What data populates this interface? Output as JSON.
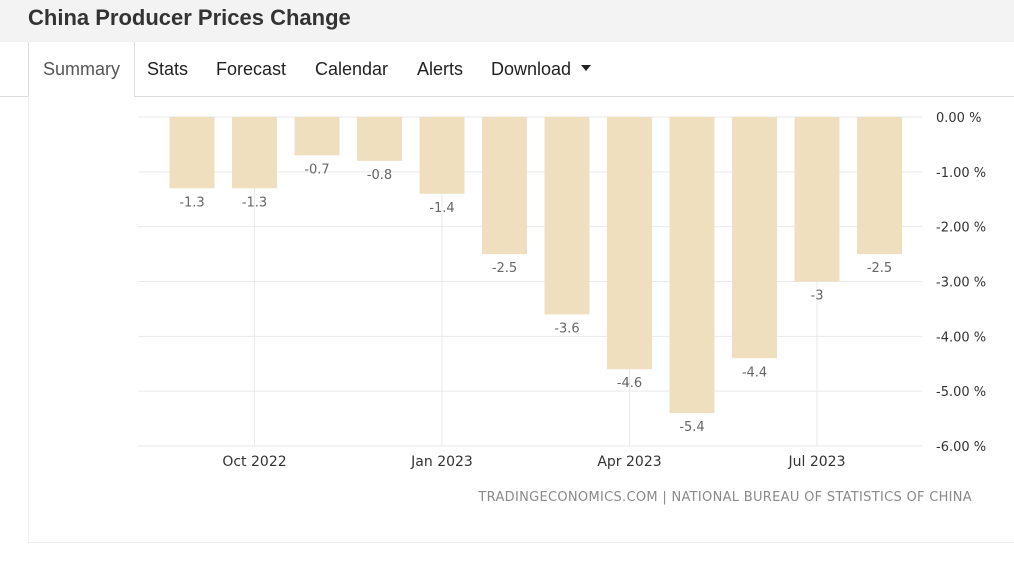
{
  "header": {
    "title": "China Producer Prices Change"
  },
  "tabs": [
    {
      "label": "Summary",
      "active": true
    },
    {
      "label": "Stats"
    },
    {
      "label": "Forecast"
    },
    {
      "label": "Calendar"
    },
    {
      "label": "Alerts"
    },
    {
      "label": "Download",
      "has_dropdown": true
    }
  ],
  "source_text": "TRADINGECONOMICS.COM | NATIONAL BUREAU OF STATISTICS OF CHINA",
  "colors": {
    "bar": "#f0dfbf",
    "grid": "#e9e9e9",
    "label": "#666666",
    "axis_text": "#333333"
  },
  "chart_data": {
    "type": "bar",
    "categories": [
      "Sep 2022",
      "Oct 2022",
      "Nov 2022",
      "Dec 2022",
      "Jan 2023",
      "Feb 2023",
      "Mar 2023",
      "Apr 2023",
      "May 2023",
      "Jun 2023",
      "Jul 2023",
      "Aug 2023"
    ],
    "values": [
      -1.3,
      -1.3,
      -0.7,
      -0.8,
      -1.4,
      -2.5,
      -3.6,
      -4.6,
      -5.4,
      -4.4,
      -3,
      -2.5
    ],
    "data_labels": [
      "-1.3",
      "-1.3",
      "-0.7",
      "-0.8",
      "-1.4",
      "-2.5",
      "-3.6",
      "-4.6",
      "-5.4",
      "-4.4",
      "-3",
      "-2.5"
    ],
    "x_tick_labels": [
      "Oct 2022",
      "Jan 2023",
      "Apr 2023",
      "Jul 2023"
    ],
    "y_tick_labels": [
      "0.00 %",
      "-1.00 %",
      "-2.00 %",
      "-3.00 %",
      "-4.00 %",
      "-5.00 %",
      "-6.00 %"
    ],
    "y_ticks": [
      0,
      -1,
      -2,
      -3,
      -4,
      -5,
      -6
    ],
    "ylim": [
      -6,
      0
    ],
    "y_axis_position": "right",
    "grid": true,
    "title": "",
    "xlabel": "",
    "ylabel": ""
  }
}
